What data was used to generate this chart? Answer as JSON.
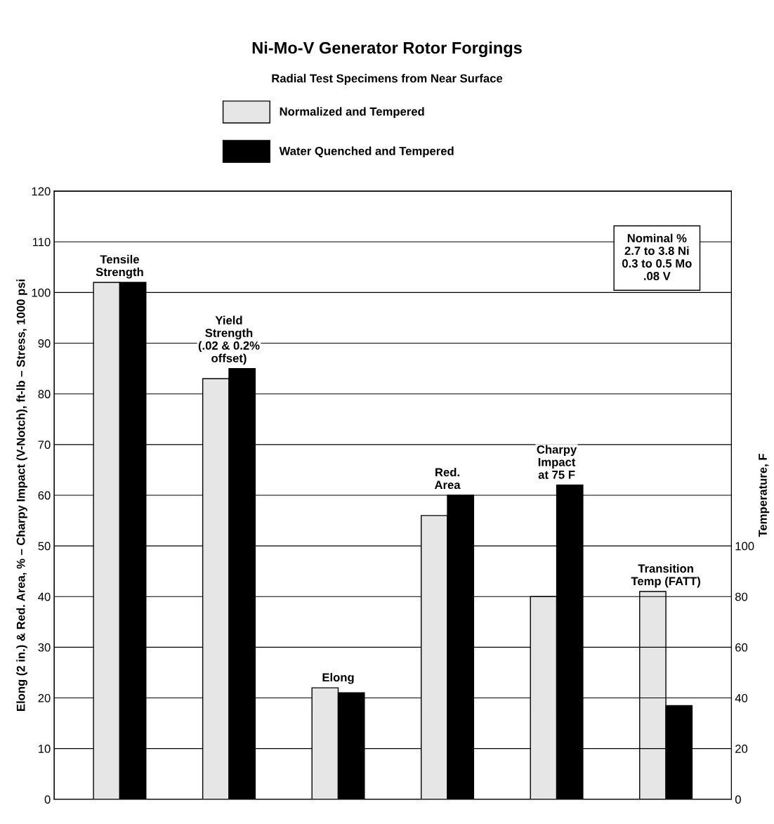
{
  "chart_data": {
    "type": "bar",
    "title": "Ni-Mo-V Generator Rotor Forgings",
    "subtitle": "Radial Test Specimens from Near Surface",
    "ylabel": "Elong (2 in.) & Red. Area, % – Charpy Impact (V-Notch), ft-lb – Stress, 1000 psi",
    "y2label": "Temperature, F",
    "categories": [
      "Tensile\nStrength",
      "Yield\nStrength\n(.02 & 0.2%\noffset)",
      "Elong",
      "Red.\nArea",
      "Charpy\nImpact\nat 75 F",
      "Transition\nTemp (FATT)"
    ],
    "series": [
      {
        "name": "Normalized and Tempered",
        "color": "#e6e6e6",
        "values": [
          102,
          83,
          22,
          56,
          40,
          null
        ]
      },
      {
        "name": "Water Quenched and Tempered",
        "color": "#000000",
        "values": [
          102,
          85,
          21,
          60,
          62,
          null
        ]
      },
      {
        "color": "#e6e6e6",
        "axis": "y2",
        "values": [
          null,
          null,
          null,
          null,
          null,
          82
        ]
      },
      {
        "color": "#000000",
        "axis": "y2",
        "values": [
          null,
          null,
          null,
          null,
          null,
          37
        ]
      }
    ],
    "ylim": [
      0,
      120
    ],
    "yticks": [
      0,
      10,
      20,
      30,
      40,
      50,
      60,
      70,
      80,
      90,
      100,
      110,
      120
    ],
    "y2lim": [
      0,
      240
    ],
    "y2ticks": [
      0,
      20,
      40,
      60,
      80,
      100
    ],
    "grid": "y",
    "legend": "top",
    "annotations": [
      "Nominal %\n2.7 to 3.8 Ni\n0.3 to 0.5 Mo\n.08 V"
    ]
  }
}
